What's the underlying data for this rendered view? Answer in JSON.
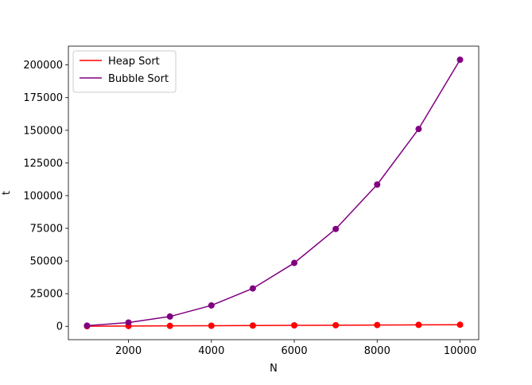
{
  "chart_data": {
    "type": "line",
    "title": "",
    "xlabel": "N",
    "ylabel": "t",
    "x": [
      1000,
      2000,
      3000,
      4000,
      5000,
      6000,
      7000,
      8000,
      9000,
      10000
    ],
    "xlim": [
      550,
      10450
    ],
    "ylim": [
      -10200,
      214400
    ],
    "xticks": [
      2000,
      4000,
      6000,
      8000,
      10000
    ],
    "yticks": [
      0,
      25000,
      50000,
      75000,
      100000,
      125000,
      150000,
      175000,
      200000
    ],
    "xtick_labels": [
      "2000",
      "4000",
      "6000",
      "8000",
      "10000"
    ],
    "ytick_labels": [
      "0",
      "25000",
      "50000",
      "75000",
      "100000",
      "125000",
      "150000",
      "175000",
      "200000"
    ],
    "grid": false,
    "legend_position": "top-left",
    "series": [
      {
        "name": "Heap Sort",
        "color": "#ff0000",
        "marker": "circle",
        "values": [
          100,
          250,
          350,
          450,
          600,
          750,
          850,
          1000,
          1100,
          1250
        ]
      },
      {
        "name": "Bubble Sort",
        "color": "#800080",
        "marker": "circle",
        "values": [
          500,
          2900,
          7500,
          16000,
          29000,
          48500,
          74500,
          108500,
          151000,
          204000
        ]
      }
    ]
  }
}
